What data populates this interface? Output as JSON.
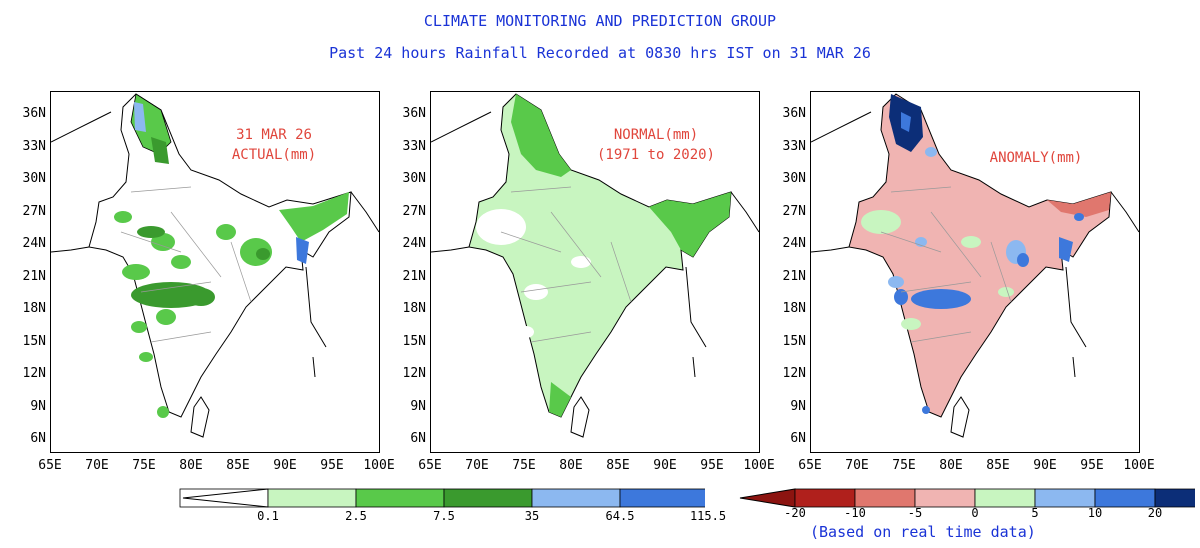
{
  "title_line1": "CLIMATE MONITORING AND PREDICTION GROUP",
  "title_line2": "Past 24 hours Rainfall Recorded at 0830 hrs IST on 31 MAR 26",
  "panels": [
    {
      "line1": "31 MAR 26",
      "line2": "ACTUAL(mm)"
    },
    {
      "line1": "NORMAL(mm)",
      "line2": "(1971 to 2020)"
    },
    {
      "line1": "ANOMALY(mm)",
      "line2": ""
    }
  ],
  "lat_labels": [
    "36N",
    "33N",
    "30N",
    "27N",
    "24N",
    "21N",
    "18N",
    "15N",
    "12N",
    "9N",
    "6N"
  ],
  "lon_labels": [
    "65E",
    "70E",
    "75E",
    "80E",
    "85E",
    "90E",
    "95E",
    "100E"
  ],
  "rain_scale": {
    "labels": [
      "0.1",
      "2.5",
      "7.5",
      "35",
      "64.5",
      "115.5"
    ],
    "colors": [
      "#c8f5c0",
      "#59c94a",
      "#3a9a2e",
      "#8cb8f0",
      "#3d78dc",
      "#0c2e78"
    ]
  },
  "anomaly_scale": {
    "labels": [
      "-20",
      "-10",
      "-5",
      "0",
      "5",
      "10",
      "20"
    ],
    "colors": [
      "#b0201c",
      "#e0776e",
      "#f0b4b2",
      "#c8f5c0",
      "#8cb8f0",
      "#3d78dc",
      "#0c2e78"
    ],
    "note": "(Based on real time data)"
  },
  "colors": {
    "title": "#1a33d6",
    "panel_text": "#e0463c",
    "land_pink": "#f0b4b2",
    "green_light": "#c8f5c0",
    "green_mid": "#59c94a",
    "green_dark": "#3a9a2e",
    "blue_light": "#8cb8f0",
    "blue_mid": "#3d78dc",
    "blue_dark": "#0c2e78"
  }
}
